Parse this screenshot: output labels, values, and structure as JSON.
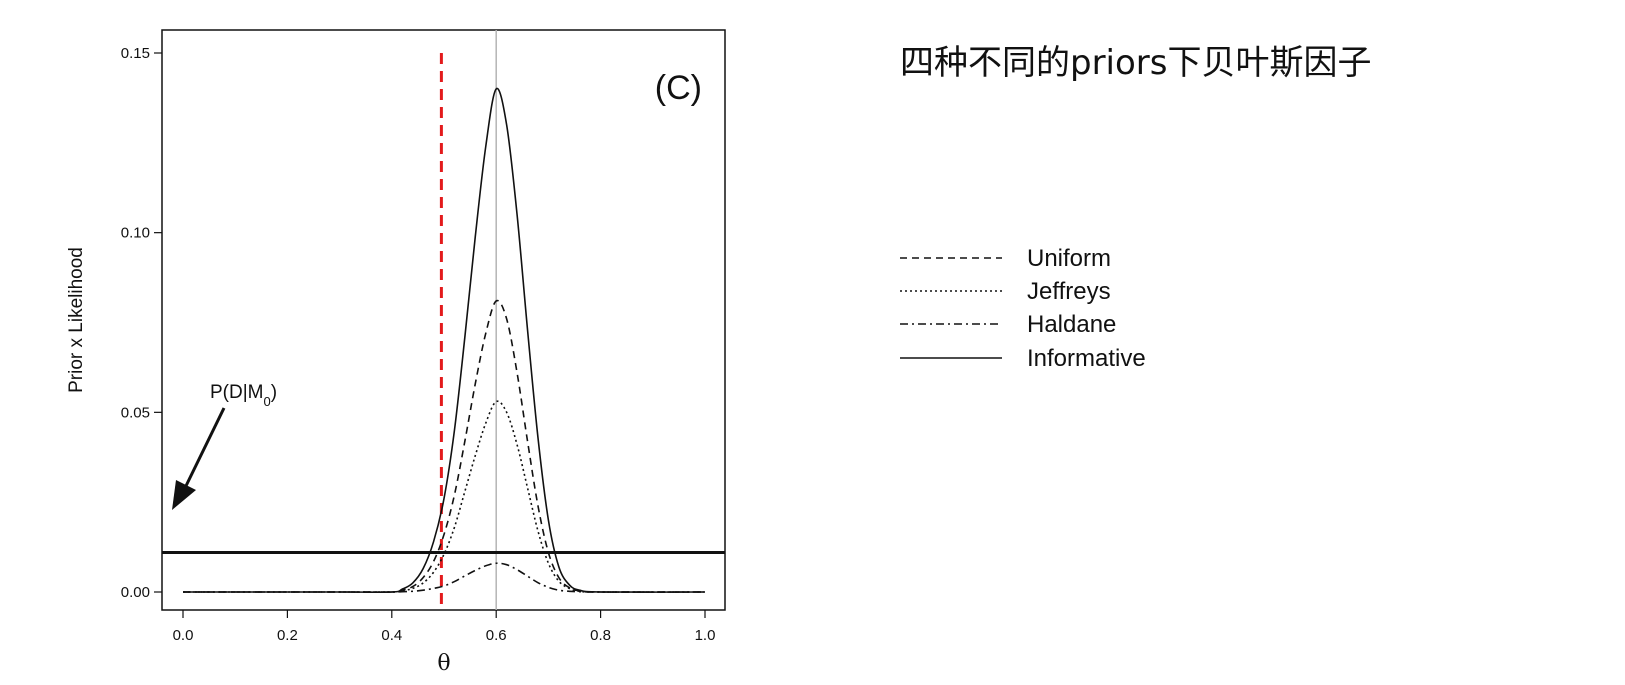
{
  "page": {
    "title": "四种不同的priors下贝叶斯因子"
  },
  "chart_data": {
    "type": "line",
    "panel_label": "(C)",
    "xlabel": "θ",
    "ylabel": "Prior x Likelihood",
    "xlim": [
      0.0,
      1.0
    ],
    "ylim": [
      0.0,
      0.15
    ],
    "x_ticks": [
      "0.0",
      "0.2",
      "0.4",
      "0.6",
      "0.8",
      "1.0"
    ],
    "y_ticks": [
      "0.00",
      "0.05",
      "0.10",
      "0.15"
    ],
    "grid": false,
    "legend_position": "right",
    "x": [
      0.0,
      0.3,
      0.4,
      0.42,
      0.44,
      0.46,
      0.48,
      0.5,
      0.52,
      0.54,
      0.56,
      0.58,
      0.6,
      0.62,
      0.64,
      0.66,
      0.68,
      0.7,
      0.72,
      0.74,
      0.76,
      0.8,
      1.0
    ],
    "series": [
      {
        "name": "Uniform",
        "style": "dashed",
        "values": [
          0,
          0,
          0,
          0.0005,
          0.0015,
          0.004,
          0.0085,
          0.016,
          0.027,
          0.042,
          0.058,
          0.072,
          0.081,
          0.076,
          0.061,
          0.042,
          0.024,
          0.011,
          0.004,
          0.0012,
          0.0003,
          0,
          0
        ]
      },
      {
        "name": "Jeffreys",
        "style": "dotted",
        "values": [
          0,
          0,
          0,
          0.0003,
          0.001,
          0.0025,
          0.0055,
          0.0105,
          0.018,
          0.028,
          0.038,
          0.047,
          0.053,
          0.05,
          0.041,
          0.029,
          0.017,
          0.008,
          0.003,
          0.001,
          0.0002,
          0,
          0
        ]
      },
      {
        "name": "Haldane",
        "style": "dashdot",
        "values": [
          0,
          0,
          0,
          0.0001,
          0.0002,
          0.0005,
          0.001,
          0.0017,
          0.0029,
          0.0045,
          0.006,
          0.0073,
          0.008,
          0.0076,
          0.0062,
          0.0044,
          0.0026,
          0.0013,
          0.0005,
          0.0002,
          0.0001,
          0,
          0
        ]
      },
      {
        "name": "Informative",
        "style": "solid",
        "values": [
          0,
          0,
          0,
          0.0008,
          0.0025,
          0.0065,
          0.014,
          0.026,
          0.045,
          0.071,
          0.099,
          0.124,
          0.14,
          0.13,
          0.105,
          0.073,
          0.043,
          0.02,
          0.007,
          0.002,
          0.0005,
          0,
          0
        ]
      }
    ],
    "reference_lines": {
      "horizontal": {
        "y": 0.011,
        "label": "P(D|M",
        "label_sub": "0",
        "label_tail": ")"
      },
      "vertical_red_dashed": {
        "x": 0.495,
        "color": "#e31a1c"
      },
      "vertical_gray": {
        "x": 0.6,
        "color": "#b5b5b5"
      }
    }
  }
}
